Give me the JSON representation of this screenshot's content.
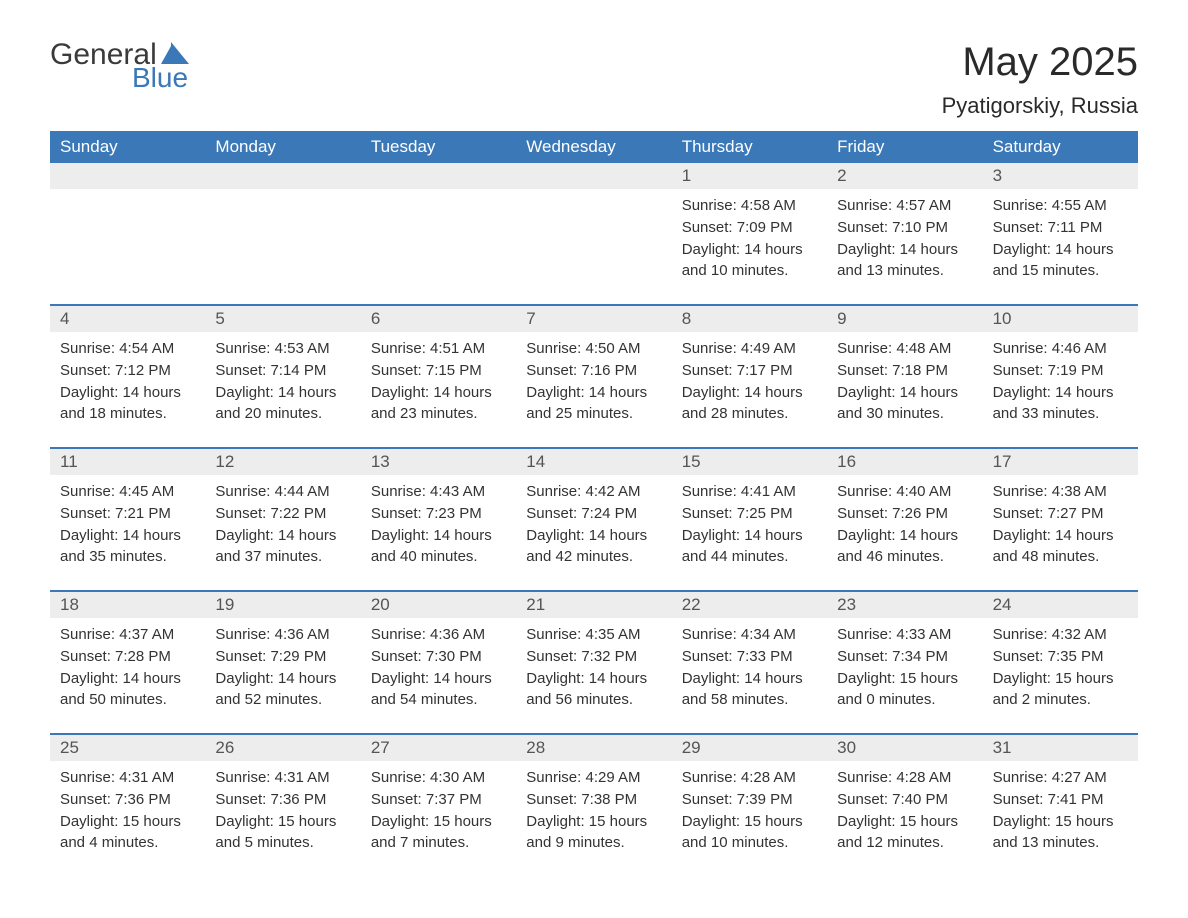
{
  "logo": {
    "text1": "General",
    "text2": "Blue",
    "flag_color": "#3a78b8"
  },
  "header": {
    "title": "May 2025",
    "location": "Pyatigorskiy, Russia"
  },
  "colors": {
    "header_bg": "#3a78b8",
    "header_text": "#ffffff",
    "daynum_bg": "#ededed",
    "border": "#3a78b8",
    "body_text": "#333333"
  },
  "day_names": [
    "Sunday",
    "Monday",
    "Tuesday",
    "Wednesday",
    "Thursday",
    "Friday",
    "Saturday"
  ],
  "weeks": [
    [
      null,
      null,
      null,
      null,
      {
        "n": "1",
        "sr": "4:58 AM",
        "ss": "7:09 PM",
        "dl": "14 hours and 10 minutes."
      },
      {
        "n": "2",
        "sr": "4:57 AM",
        "ss": "7:10 PM",
        "dl": "14 hours and 13 minutes."
      },
      {
        "n": "3",
        "sr": "4:55 AM",
        "ss": "7:11 PM",
        "dl": "14 hours and 15 minutes."
      }
    ],
    [
      {
        "n": "4",
        "sr": "4:54 AM",
        "ss": "7:12 PM",
        "dl": "14 hours and 18 minutes."
      },
      {
        "n": "5",
        "sr": "4:53 AM",
        "ss": "7:14 PM",
        "dl": "14 hours and 20 minutes."
      },
      {
        "n": "6",
        "sr": "4:51 AM",
        "ss": "7:15 PM",
        "dl": "14 hours and 23 minutes."
      },
      {
        "n": "7",
        "sr": "4:50 AM",
        "ss": "7:16 PM",
        "dl": "14 hours and 25 minutes."
      },
      {
        "n": "8",
        "sr": "4:49 AM",
        "ss": "7:17 PM",
        "dl": "14 hours and 28 minutes."
      },
      {
        "n": "9",
        "sr": "4:48 AM",
        "ss": "7:18 PM",
        "dl": "14 hours and 30 minutes."
      },
      {
        "n": "10",
        "sr": "4:46 AM",
        "ss": "7:19 PM",
        "dl": "14 hours and 33 minutes."
      }
    ],
    [
      {
        "n": "11",
        "sr": "4:45 AM",
        "ss": "7:21 PM",
        "dl": "14 hours and 35 minutes."
      },
      {
        "n": "12",
        "sr": "4:44 AM",
        "ss": "7:22 PM",
        "dl": "14 hours and 37 minutes."
      },
      {
        "n": "13",
        "sr": "4:43 AM",
        "ss": "7:23 PM",
        "dl": "14 hours and 40 minutes."
      },
      {
        "n": "14",
        "sr": "4:42 AM",
        "ss": "7:24 PM",
        "dl": "14 hours and 42 minutes."
      },
      {
        "n": "15",
        "sr": "4:41 AM",
        "ss": "7:25 PM",
        "dl": "14 hours and 44 minutes."
      },
      {
        "n": "16",
        "sr": "4:40 AM",
        "ss": "7:26 PM",
        "dl": "14 hours and 46 minutes."
      },
      {
        "n": "17",
        "sr": "4:38 AM",
        "ss": "7:27 PM",
        "dl": "14 hours and 48 minutes."
      }
    ],
    [
      {
        "n": "18",
        "sr": "4:37 AM",
        "ss": "7:28 PM",
        "dl": "14 hours and 50 minutes."
      },
      {
        "n": "19",
        "sr": "4:36 AM",
        "ss": "7:29 PM",
        "dl": "14 hours and 52 minutes."
      },
      {
        "n": "20",
        "sr": "4:36 AM",
        "ss": "7:30 PM",
        "dl": "14 hours and 54 minutes."
      },
      {
        "n": "21",
        "sr": "4:35 AM",
        "ss": "7:32 PM",
        "dl": "14 hours and 56 minutes."
      },
      {
        "n": "22",
        "sr": "4:34 AM",
        "ss": "7:33 PM",
        "dl": "14 hours and 58 minutes."
      },
      {
        "n": "23",
        "sr": "4:33 AM",
        "ss": "7:34 PM",
        "dl": "15 hours and 0 minutes."
      },
      {
        "n": "24",
        "sr": "4:32 AM",
        "ss": "7:35 PM",
        "dl": "15 hours and 2 minutes."
      }
    ],
    [
      {
        "n": "25",
        "sr": "4:31 AM",
        "ss": "7:36 PM",
        "dl": "15 hours and 4 minutes."
      },
      {
        "n": "26",
        "sr": "4:31 AM",
        "ss": "7:36 PM",
        "dl": "15 hours and 5 minutes."
      },
      {
        "n": "27",
        "sr": "4:30 AM",
        "ss": "7:37 PM",
        "dl": "15 hours and 7 minutes."
      },
      {
        "n": "28",
        "sr": "4:29 AM",
        "ss": "7:38 PM",
        "dl": "15 hours and 9 minutes."
      },
      {
        "n": "29",
        "sr": "4:28 AM",
        "ss": "7:39 PM",
        "dl": "15 hours and 10 minutes."
      },
      {
        "n": "30",
        "sr": "4:28 AM",
        "ss": "7:40 PM",
        "dl": "15 hours and 12 minutes."
      },
      {
        "n": "31",
        "sr": "4:27 AM",
        "ss": "7:41 PM",
        "dl": "15 hours and 13 minutes."
      }
    ]
  ],
  "labels": {
    "sunrise": "Sunrise:",
    "sunset": "Sunset:",
    "daylight": "Daylight:"
  }
}
